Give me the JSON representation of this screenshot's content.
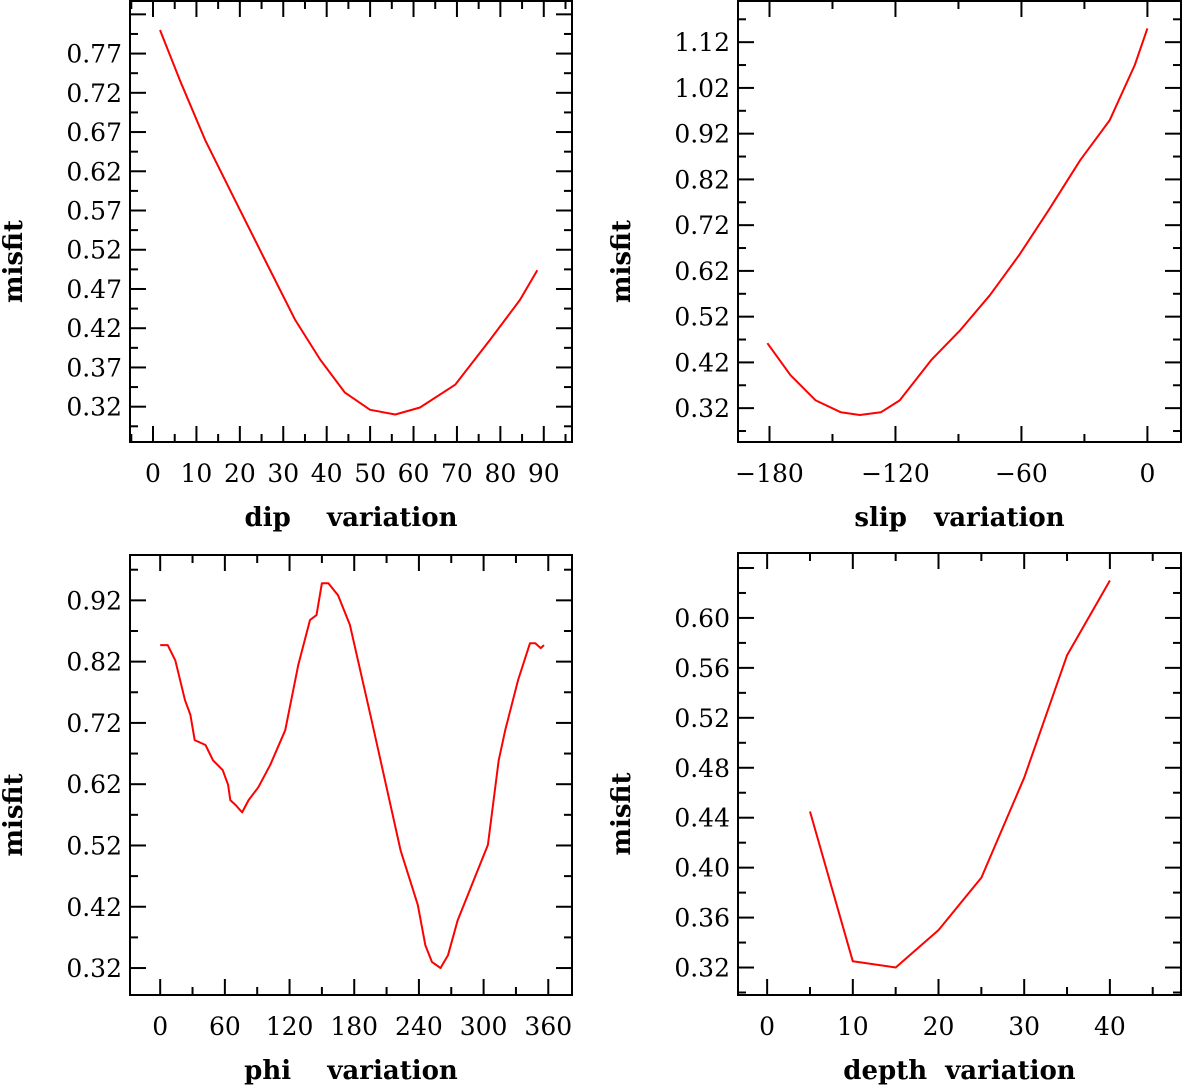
{
  "chart_data": [
    {
      "type": "line",
      "xlabel": "dip    variation",
      "ylabel": "misfit",
      "xlim": [
        -5.3,
        96.5
      ],
      "ylim": [
        0.275,
        0.837
      ],
      "xticks": [
        0,
        10,
        20,
        30,
        40,
        50,
        60,
        70,
        80,
        90
      ],
      "xtick_labels": [
        "0",
        "10",
        "20",
        "30",
        "40",
        "50",
        "60",
        "70",
        "80",
        "90"
      ],
      "yticks": [
        0.32,
        0.37,
        0.42,
        0.47,
        0.52,
        0.57,
        0.62,
        0.67,
        0.72,
        0.77
      ],
      "ytick_labels": [
        "0.32",
        "0.37",
        "0.42",
        "0.47",
        "0.52",
        "0.57",
        "0.62",
        "0.67",
        "0.72",
        "0.77"
      ],
      "color": "#ff0000",
      "x": [
        1.6,
        6.2,
        12,
        18.9,
        25.8,
        32.7,
        38.5,
        44.2,
        50,
        55.8,
        61.5,
        69.6,
        77.6,
        84.5,
        88.5
      ],
      "y": [
        0.8,
        0.736,
        0.66,
        0.583,
        0.507,
        0.431,
        0.38,
        0.338,
        0.316,
        0.31,
        0.319,
        0.348,
        0.405,
        0.456,
        0.494
      ]
    },
    {
      "type": "line",
      "xlabel": "slip   variation",
      "ylabel": "misfit",
      "xlim": [
        -195,
        16
      ],
      "ylim": [
        0.246,
        1.21
      ],
      "xticks": [
        -180,
        -120,
        -60,
        0
      ],
      "xtick_labels": [
        "−180",
        "−120",
        "−60",
        "0"
      ],
      "yticks": [
        0.32,
        0.42,
        0.52,
        0.62,
        0.72,
        0.82,
        0.92,
        1.02,
        1.12
      ],
      "ytick_labels": [
        "0.32",
        "0.42",
        "0.52",
        "0.62",
        "0.72",
        "0.82",
        "0.92",
        "1.02",
        "1.12"
      ],
      "color": "#ff0000",
      "x": [
        -181,
        -170,
        -158,
        -146,
        -137,
        -127,
        -118,
        -103,
        -89,
        -75,
        -61,
        -47,
        -32,
        -18,
        -6,
        0
      ],
      "y": [
        0.462,
        0.392,
        0.337,
        0.311,
        0.305,
        0.311,
        0.337,
        0.425,
        0.491,
        0.567,
        0.655,
        0.753,
        0.862,
        0.949,
        1.07,
        1.15
      ]
    },
    {
      "type": "line",
      "xlabel": "phi    variation",
      "ylabel": "misfit",
      "xlim": [
        -28,
        382
      ],
      "ylim": [
        0.276,
        0.994
      ],
      "xticks": [
        0,
        60,
        120,
        180,
        240,
        300,
        360
      ],
      "xtick_labels": [
        "0",
        "60",
        "120",
        "180",
        "240",
        "300",
        "360"
      ],
      "yticks": [
        0.32,
        0.42,
        0.52,
        0.62,
        0.72,
        0.82,
        0.92
      ],
      "ytick_labels": [
        "0.32",
        "0.42",
        "0.52",
        "0.62",
        "0.72",
        "0.82",
        "0.92"
      ],
      "color": "#ff0000",
      "x": [
        0,
        7,
        14,
        23,
        28,
        32,
        42,
        49,
        58,
        63,
        65,
        70,
        76,
        82,
        91,
        102,
        116,
        128,
        139,
        145,
        150,
        156,
        165,
        176,
        196,
        223,
        239,
        246,
        252,
        260,
        267,
        276,
        289,
        304,
        314,
        320,
        332,
        343,
        348,
        353,
        356
      ],
      "y": [
        0.847,
        0.847,
        0.822,
        0.757,
        0.733,
        0.692,
        0.684,
        0.659,
        0.643,
        0.619,
        0.594,
        0.586,
        0.574,
        0.594,
        0.615,
        0.651,
        0.708,
        0.814,
        0.888,
        0.896,
        0.948,
        0.948,
        0.928,
        0.88,
        0.725,
        0.512,
        0.423,
        0.357,
        0.33,
        0.32,
        0.341,
        0.398,
        0.455,
        0.521,
        0.659,
        0.708,
        0.79,
        0.85,
        0.85,
        0.842,
        0.847
      ]
    },
    {
      "type": "line",
      "xlabel": "depth  variation",
      "ylabel": "misfit",
      "xlim": [
        -3.4,
        48.3
      ],
      "ylim": [
        0.298,
        0.652
      ],
      "xticks": [
        0,
        10,
        20,
        30,
        40
      ],
      "xtick_labels": [
        "0",
        "10",
        "20",
        "30",
        "40"
      ],
      "yticks": [
        0.32,
        0.36,
        0.4,
        0.44,
        0.48,
        0.52,
        0.56,
        0.6
      ],
      "ytick_labels": [
        "0.32",
        "0.36",
        "0.40",
        "0.44",
        "0.48",
        "0.52",
        "0.56",
        "0.60"
      ],
      "color": "#ff0000",
      "x": [
        5,
        10,
        15,
        20,
        25,
        30,
        35,
        40
      ],
      "y": [
        0.445,
        0.325,
        0.32,
        0.35,
        0.392,
        0.472,
        0.57,
        0.63
      ]
    }
  ]
}
